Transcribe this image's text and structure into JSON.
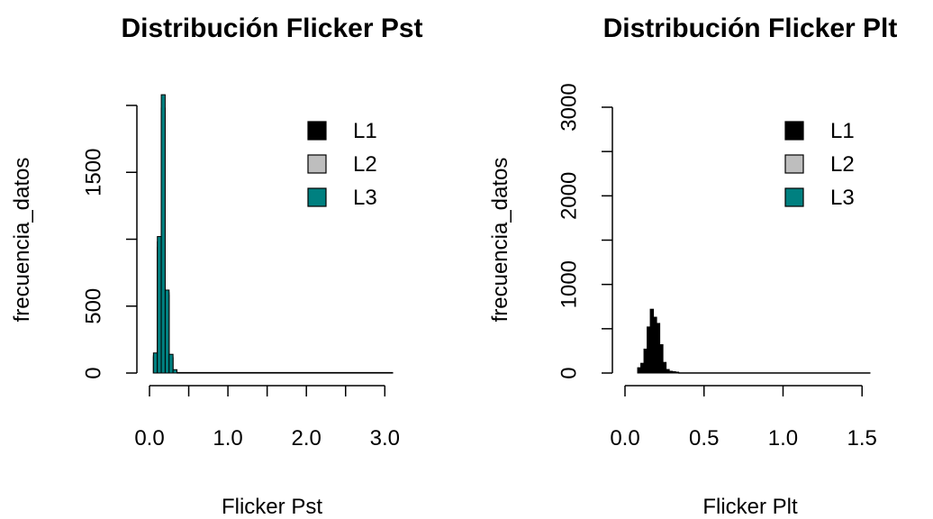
{
  "chart_data": [
    {
      "type": "histogram",
      "title": "Distribución Flicker Pst",
      "xlabel": "Flicker Pst",
      "ylabel": "frecuencia_datos",
      "xlim": [
        0,
        3.1
      ],
      "ylim": [
        0,
        2000
      ],
      "x_ticks": [
        0.0,
        0.5,
        1.0,
        1.5,
        2.0,
        2.5,
        3.0
      ],
      "x_tick_labels": [
        "0.0",
        "",
        "1.0",
        "",
        "2.0",
        "",
        "3.0"
      ],
      "y_ticks": [
        0,
        500,
        1000,
        1500,
        2000
      ],
      "y_tick_labels": [
        "0",
        "500",
        "",
        "1500",
        ""
      ],
      "legend": {
        "position": "top-right",
        "entries": [
          {
            "label": "L1",
            "color": "#000000"
          },
          {
            "label": "L2",
            "color": "#BEBEBE"
          },
          {
            "label": "L3",
            "color": "#008080"
          }
        ]
      },
      "series": [
        {
          "name": "L1",
          "color": "#000000",
          "bins": [
            [
              0.05,
              0.1,
              120
            ],
            [
              0.1,
              0.15,
              940
            ],
            [
              0.15,
              0.2,
              1920
            ],
            [
              0.2,
              0.25,
              580
            ],
            [
              0.25,
              0.3,
              110
            ],
            [
              0.3,
              0.35,
              20
            ],
            [
              0.35,
              3.1,
              3
            ]
          ]
        },
        {
          "name": "L2",
          "color": "#BEBEBE",
          "bins": [
            [
              0.05,
              0.1,
              130
            ],
            [
              0.1,
              0.15,
              980
            ],
            [
              0.15,
              0.2,
              1980
            ],
            [
              0.2,
              0.25,
              600
            ],
            [
              0.25,
              0.3,
              120
            ],
            [
              0.3,
              0.35,
              22
            ],
            [
              0.35,
              3.1,
              3
            ]
          ]
        },
        {
          "name": "L3",
          "color": "#008080",
          "bins": [
            [
              0.05,
              0.1,
              150
            ],
            [
              0.1,
              0.15,
              1020
            ],
            [
              0.15,
              0.2,
              2080
            ],
            [
              0.2,
              0.25,
              620
            ],
            [
              0.25,
              0.3,
              140
            ],
            [
              0.3,
              0.35,
              25
            ],
            [
              0.35,
              3.1,
              4
            ]
          ]
        }
      ]
    },
    {
      "type": "histogram",
      "title": "Distribución Flicker Plt",
      "xlabel": "Flicker Plt",
      "ylabel": "frecuencia_datos",
      "xlim": [
        0,
        1.55
      ],
      "ylim": [
        0,
        3000
      ],
      "x_ticks": [
        0.0,
        0.5,
        1.0,
        1.5
      ],
      "x_tick_labels": [
        "0.0",
        "0.5",
        "1.0",
        "1.5"
      ],
      "y_ticks": [
        0,
        500,
        1000,
        1500,
        2000,
        2500,
        3000
      ],
      "y_tick_labels": [
        "0",
        "",
        "1000",
        "",
        "2000",
        "",
        "3000"
      ],
      "legend": {
        "position": "top-right",
        "entries": [
          {
            "label": "L1",
            "color": "#000000"
          },
          {
            "label": "L2",
            "color": "#BEBEBE"
          },
          {
            "label": "L3",
            "color": "#008080"
          }
        ]
      },
      "series": [
        {
          "name": "L1",
          "color": "#000000",
          "bins": [
            [
              0.08,
              0.1,
              60
            ],
            [
              0.1,
              0.12,
              110
            ],
            [
              0.12,
              0.14,
              270
            ],
            [
              0.14,
              0.16,
              520
            ],
            [
              0.16,
              0.18,
              720
            ],
            [
              0.18,
              0.2,
              630
            ],
            [
              0.2,
              0.22,
              560
            ],
            [
              0.22,
              0.24,
              320
            ],
            [
              0.24,
              0.26,
              120
            ],
            [
              0.26,
              0.28,
              40
            ],
            [
              0.28,
              0.3,
              20
            ],
            [
              0.3,
              0.32,
              15
            ],
            [
              0.32,
              0.34,
              10
            ],
            [
              0.34,
              1.55,
              3
            ]
          ]
        }
      ]
    }
  ]
}
